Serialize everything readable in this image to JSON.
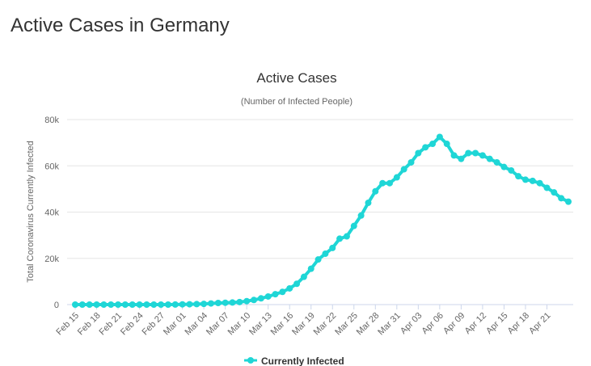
{
  "page": {
    "heading": "Active Cases in Germany"
  },
  "colors": {
    "series": "#1fd6d6",
    "grid": "#e6e6e6",
    "axis": "#ccd6eb",
    "text": "#333333",
    "muted": "#666666"
  },
  "chart_data": {
    "type": "line",
    "title": "Active Cases",
    "subtitle": "(Number of Infected People)",
    "xlabel": "",
    "ylabel": "Total Coronavirus Currently Infected",
    "ylim": [
      0,
      80000
    ],
    "yticks": [
      0,
      20000,
      40000,
      60000,
      80000
    ],
    "ytick_labels": [
      "0",
      "20k",
      "40k",
      "60k",
      "80k"
    ],
    "xtick_labels": [
      "Feb 15",
      "Feb 18",
      "Feb 21",
      "Feb 24",
      "Feb 27",
      "Mar 01",
      "Mar 04",
      "Mar 07",
      "Mar 10",
      "Mar 13",
      "Mar 16",
      "Mar 19",
      "Mar 22",
      "Mar 25",
      "Mar 28",
      "Mar 31",
      "Apr 03",
      "Apr 06",
      "Apr 09",
      "Apr 12",
      "Apr 15",
      "Apr 18",
      "Apr 21"
    ],
    "xtick_every": 3,
    "grid": true,
    "legend_position": "bottom-center",
    "series": [
      {
        "name": "Currently Infected",
        "color": "#1fd6d6",
        "start_date": "Feb 15",
        "values": [
          0,
          0,
          0,
          0,
          0,
          0,
          0,
          0,
          0,
          0,
          0,
          0,
          0,
          0,
          50,
          100,
          150,
          200,
          300,
          500,
          700,
          800,
          900,
          1100,
          1500,
          2000,
          2700,
          3500,
          4500,
          5500,
          7000,
          9000,
          12000,
          15500,
          19500,
          22000,
          24500,
          28500,
          29500,
          34000,
          38500,
          44000,
          49000,
          52500,
          52500,
          55000,
          58500,
          61500,
          65500,
          68000,
          69500,
          72500,
          69500,
          64500,
          63000,
          65500,
          65500,
          64500,
          63000,
          61500,
          59500,
          58000,
          55500,
          54000,
          53500,
          52500,
          50500,
          48500,
          46000,
          44500
        ]
      }
    ]
  }
}
